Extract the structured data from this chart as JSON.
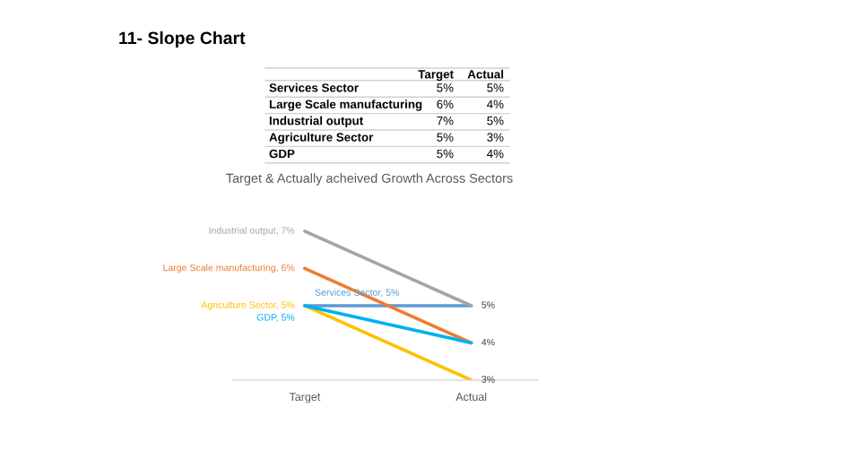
{
  "chart_data": [
    {
      "type": "other",
      "title": "11- Slope Chart",
      "categories": [
        "Target",
        "Actual"
      ],
      "y_categories": [
        "Services Sector",
        "Large Scale manufacturing",
        "Industrial output",
        "Agriculture Sector",
        "GDP"
      ],
      "cell_labels": [
        [
          "5%",
          "5%"
        ],
        [
          "6%",
          "4%"
        ],
        [
          "7%",
          "5%"
        ],
        [
          "5%",
          "3%"
        ],
        [
          "5%",
          "4%"
        ]
      ]
    },
    {
      "type": "line",
      "title": "Target & Actually acheived Growth Across Sectors",
      "categories": [
        "Target",
        "Actual"
      ],
      "series": [
        {
          "color": "#5b9bd5",
          "values": [
            5,
            5
          ],
          "value_labels": [
            "Services Sector, 5%",
            null
          ]
        },
        {
          "color": "#ed7d31",
          "values": [
            6,
            4
          ],
          "value_labels": [
            "Large Scale manufacturing, 6%",
            null
          ]
        },
        {
          "color": "#a5a5a5",
          "values": [
            7,
            5
          ],
          "value_labels": [
            "Industrial output, 7%",
            "5%"
          ]
        },
        {
          "color": "#ffc000",
          "values": [
            5,
            3
          ],
          "value_labels": [
            "Agriculture Sector, 5%",
            "3%"
          ]
        },
        {
          "color": "#00b0f0",
          "values": [
            5,
            4
          ],
          "value_labels": [
            "GDP, 5%",
            "4%"
          ]
        }
      ]
    }
  ]
}
